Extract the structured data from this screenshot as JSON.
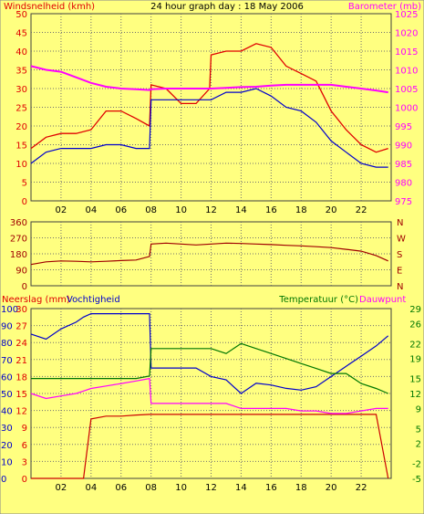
{
  "header": {
    "left_title": "Windsnelheid (kmh)",
    "center_title": "24 hour graph day : 18 May 2006",
    "right_title": "Barometer (mb)"
  },
  "colors": {
    "background": "#ffff80",
    "wind_gust": "#e00000",
    "wind_avg": "#0000cc",
    "barometer": "#ff00ff",
    "direction": "#a00000",
    "rain": "#cc0000",
    "humidity": "#0000cc",
    "temperature": "#007700",
    "dewpoint": "#ff00ff",
    "grid": "#707070"
  },
  "x_ticks": [
    "02",
    "04",
    "06",
    "08",
    "10",
    "12",
    "14",
    "16",
    "18",
    "20",
    "22"
  ],
  "chart_data": [
    {
      "type": "line",
      "title": "24 hour graph day : 18 May 2006",
      "xlabel": "",
      "ylabel": "Windsnelheid (kmh)",
      "y2label": "Barometer (mb)",
      "xlim": [
        0,
        24
      ],
      "ylim": [
        0,
        50
      ],
      "y2lim": [
        975,
        1025
      ],
      "yticks": [
        0,
        5,
        10,
        15,
        20,
        25,
        30,
        35,
        40,
        45,
        50
      ],
      "y2ticks": [
        975,
        980,
        985,
        990,
        995,
        1000,
        1005,
        1010,
        1015,
        1020,
        1025
      ],
      "grid": true,
      "x": [
        0,
        1,
        2,
        3,
        4,
        5,
        6,
        7,
        7.9,
        8,
        9,
        10,
        11,
        11.9,
        12,
        13,
        14,
        15,
        16,
        17,
        18,
        19,
        20,
        21,
        22,
        23,
        23.8
      ],
      "series": [
        {
          "name": "Windsnelheid (kmh) gust",
          "axis": "left",
          "values": [
            14,
            17,
            18,
            18,
            19,
            24,
            24,
            22,
            20,
            31,
            30,
            26,
            26,
            30,
            39,
            40,
            40,
            42,
            41,
            36,
            34,
            32,
            24,
            19,
            15,
            13,
            14
          ]
        },
        {
          "name": "Windsnelheid (kmh) avg",
          "axis": "left",
          "values": [
            10,
            13,
            14,
            14,
            14,
            15,
            15,
            14,
            14,
            27,
            27,
            27,
            27,
            27,
            27,
            29,
            29,
            30,
            28,
            25,
            24,
            21,
            16,
            13,
            10,
            9,
            9
          ]
        },
        {
          "name": "Barometer (mb)",
          "axis": "right",
          "values": [
            1011,
            1010,
            1009.5,
            1008,
            1006.5,
            1005.5,
            1005,
            1004.8,
            1004.6,
            1004.8,
            1005,
            1005,
            1005,
            1005,
            1005,
            1005.2,
            1005.4,
            1005.5,
            1005.8,
            1006,
            1006,
            1006,
            1006,
            1005.5,
            1005,
            1004.5,
            1004
          ]
        }
      ]
    },
    {
      "type": "line",
      "title": "",
      "xlabel": "",
      "ylabel": "",
      "xlim": [
        0,
        24
      ],
      "ylim": [
        0,
        360
      ],
      "yticks": [
        0,
        90,
        180,
        270,
        360
      ],
      "y2ticks": [
        "N",
        "W",
        "S",
        "E",
        "N"
      ],
      "grid": true,
      "x": [
        0,
        1,
        2,
        3,
        4,
        5,
        6,
        7,
        7.9,
        8,
        9,
        10,
        11,
        12,
        13,
        14,
        15,
        16,
        17,
        18,
        19,
        20,
        21,
        22,
        23,
        23.8
      ],
      "series": [
        {
          "name": "Wind direction",
          "values": [
            120,
            135,
            140,
            138,
            135,
            138,
            142,
            145,
            165,
            235,
            240,
            235,
            230,
            235,
            240,
            238,
            235,
            232,
            228,
            225,
            220,
            215,
            205,
            195,
            170,
            140
          ]
        }
      ]
    },
    {
      "type": "line",
      "title": "",
      "xlabel": "",
      "ylabel": "Neerslag (mm) Vochtigheid",
      "y2label": "Temperatuur (°C) Dauwpunt",
      "xlim": [
        0,
        24
      ],
      "ylim": [
        0,
        30
      ],
      "yticks_rain": [
        0,
        3,
        6,
        9,
        12,
        15,
        18,
        21,
        24,
        27,
        30
      ],
      "yticks_humidity": [
        0,
        10,
        20,
        30,
        40,
        50,
        60,
        70,
        80,
        90,
        100
      ],
      "y2lim": [
        -5,
        29
      ],
      "y2ticks": [
        -5,
        -2,
        2,
        5,
        9,
        12,
        15,
        19,
        22,
        26,
        29
      ],
      "grid": true,
      "x": [
        0,
        1,
        2,
        3,
        3.5,
        4,
        5,
        6,
        7,
        7.9,
        8,
        9,
        10,
        11,
        12,
        13,
        14,
        15,
        16,
        17,
        18,
        19,
        20,
        21,
        22,
        23,
        23.8
      ],
      "series": [
        {
          "name": "Neerslag (mm)",
          "axis": "left",
          "values": [
            0,
            0,
            0,
            0,
            0,
            10.5,
            11,
            11,
            11.2,
            11.3,
            11.3,
            11.3,
            11.3,
            11.3,
            11.3,
            11.3,
            11.3,
            11.3,
            11.3,
            11.3,
            11.3,
            11.3,
            11.3,
            11.3,
            11.3,
            11.3,
            0
          ]
        },
        {
          "name": "Vochtigheid",
          "axis": "humidity",
          "values": [
            85,
            82,
            88,
            92,
            95,
            97,
            97,
            97,
            97,
            97,
            65,
            65,
            65,
            65,
            60,
            58,
            50,
            56,
            55,
            53,
            52,
            54,
            60,
            66,
            72,
            78,
            84
          ]
        },
        {
          "name": "Temperatuur (°C)",
          "axis": "right",
          "values": [
            15,
            15,
            15,
            15,
            15,
            15,
            15,
            15,
            15,
            15.5,
            21,
            21,
            21,
            21,
            21,
            20,
            22,
            21,
            20,
            19,
            18,
            17,
            16,
            16,
            14,
            13,
            12
          ]
        },
        {
          "name": "Dauwpunt",
          "axis": "right",
          "values": [
            12,
            11,
            11.5,
            12,
            12.5,
            13,
            13.5,
            14,
            14.5,
            15,
            10,
            10,
            10,
            10,
            10,
            10,
            9,
            9,
            9,
            9,
            8.5,
            8.5,
            8,
            8,
            8.5,
            9,
            9
          ]
        }
      ]
    }
  ],
  "panels": [
    {
      "left_label": "",
      "right_label": ""
    },
    {
      "left_label": "",
      "right_label": ""
    },
    {
      "left_label": "Neerslag (mm)",
      "left_label2": "Vochtigheid",
      "right_label": "Temperatuur (°C)",
      "right_label2": "Dauwpunt"
    }
  ]
}
